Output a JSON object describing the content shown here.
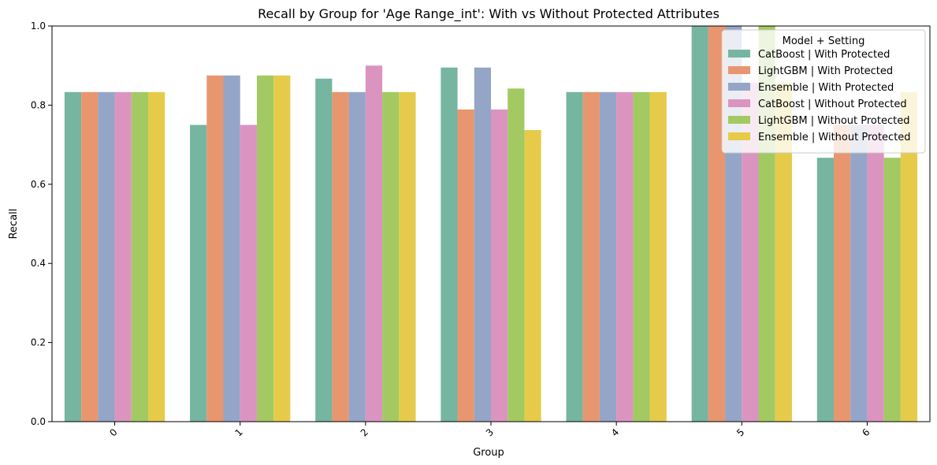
{
  "chart_data": {
    "type": "bar",
    "title": "Recall by Group for 'Age Range_int': With vs Without Protected Attributes",
    "xlabel": "Group",
    "ylabel": "Recall",
    "ylim": [
      0,
      1.0
    ],
    "yticks": [
      "0.0",
      "0.2",
      "0.4",
      "0.6",
      "0.8",
      "1.0"
    ],
    "categories": [
      "0",
      "1",
      "2",
      "3",
      "4",
      "5",
      "6"
    ],
    "legend": {
      "title": "Model + Setting",
      "placement": "top-right"
    },
    "series": [
      {
        "name": "CatBoost | With Protected",
        "color": "#76b59f",
        "values": [
          0.833,
          0.75,
          0.867,
          0.895,
          0.833,
          1.0,
          0.667
        ]
      },
      {
        "name": "LightGBM | With Protected",
        "color": "#e8966f",
        "values": [
          0.833,
          0.875,
          0.833,
          0.789,
          0.833,
          1.0,
          0.75
        ]
      },
      {
        "name": "Ensemble | With Protected",
        "color": "#95a5c7",
        "values": [
          0.833,
          0.875,
          0.833,
          0.895,
          0.833,
          1.0,
          0.75
        ]
      },
      {
        "name": "CatBoost | Without Protected",
        "color": "#db94c0",
        "values": [
          0.833,
          0.75,
          0.9,
          0.789,
          0.833,
          0.857,
          0.75
        ]
      },
      {
        "name": "LightGBM | Without Protected",
        "color": "#a3c962",
        "values": [
          0.833,
          0.875,
          0.833,
          0.842,
          0.833,
          1.0,
          0.667
        ]
      },
      {
        "name": "Ensemble | Without Protected",
        "color": "#e5cb49",
        "values": [
          0.833,
          0.875,
          0.833,
          0.737,
          0.833,
          0.857,
          0.833
        ]
      }
    ]
  }
}
